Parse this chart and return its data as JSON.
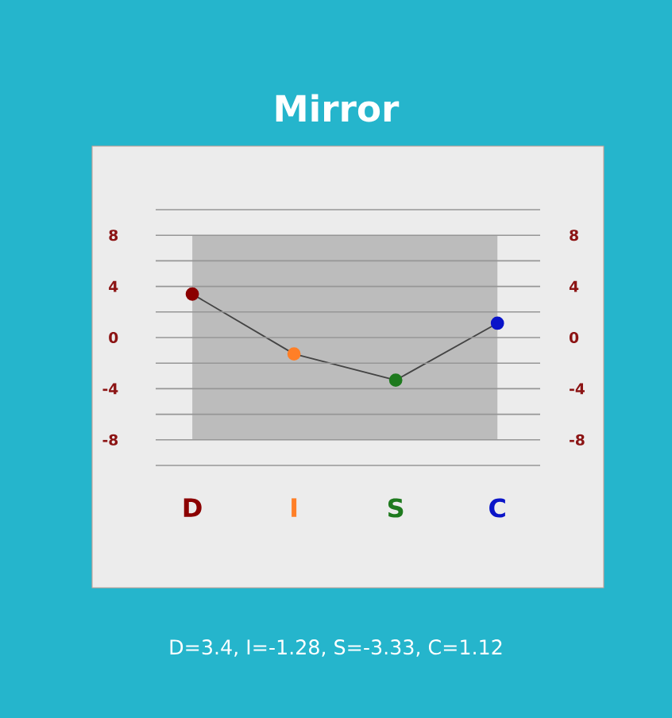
{
  "chart_data": {
    "type": "line",
    "title": "Mirror",
    "categories": [
      "D",
      "I",
      "S",
      "C"
    ],
    "values": [
      3.4,
      -1.28,
      -3.33,
      1.12
    ],
    "color": "#444444",
    "colors": [
      "#8b0000",
      "#ff7f27",
      "#1e7a1e",
      "#0a14c8"
    ],
    "marker": "circle",
    "line_style": "solid",
    "grid": "y",
    "ylim": [
      -10,
      10
    ],
    "yticks": [
      {
        "value": -10,
        "label": null
      },
      -8,
      {
        "value": -6,
        "label": null
      },
      -4,
      {
        "value": -2,
        "label": null
      },
      0,
      {
        "value": 2,
        "label": null
      },
      4,
      {
        "value": 6,
        "label": null
      },
      8,
      {
        "value": 10,
        "label": null
      }
    ],
    "y2lim": [
      -10,
      10
    ],
    "y2ticks": [
      -8,
      -4,
      0,
      4,
      8
    ],
    "bands": [
      {
        "axis": "y",
        "from": -8,
        "to": 8,
        "color": "#bcbcbc"
      }
    ],
    "annotations": [
      "D=3.4, I=-1.28, S=-3.33, C=1.12"
    ]
  }
}
